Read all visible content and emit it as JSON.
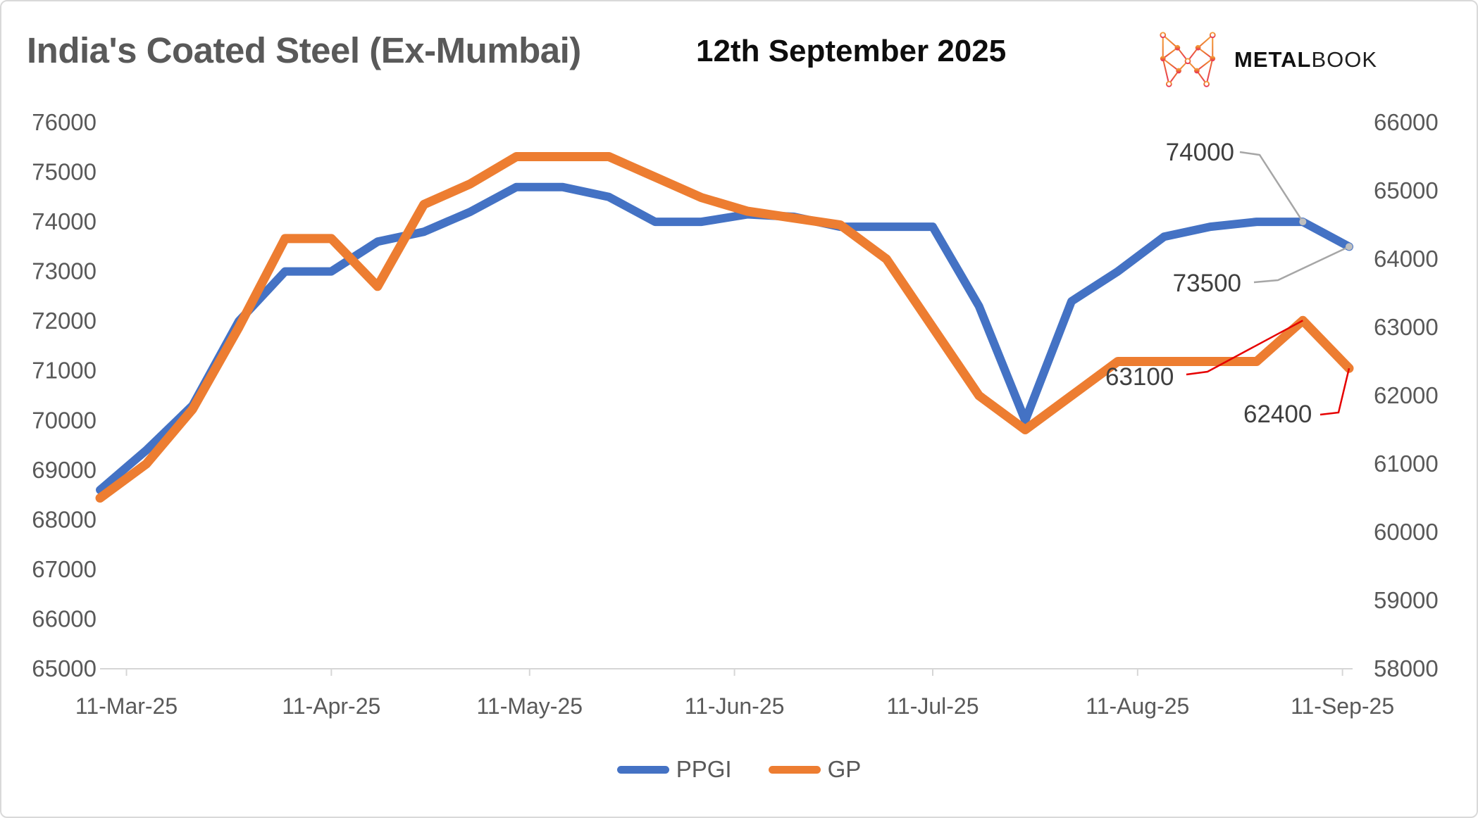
{
  "header": {
    "title": "India's Coated Steel (Ex-Mumbai)",
    "date": "12th September 2025",
    "logo": {
      "icon": "metalbook-network-m-icon",
      "brand_bold": "METAL",
      "brand_light": "BOOK"
    }
  },
  "chart_data": {
    "type": "line",
    "title": "India's Coated Steel (Ex-Mumbai)",
    "grid": false,
    "legend_position": "bottom",
    "x_tick_labels": [
      "11-Mar-25",
      "11-Apr-25",
      "11-May-25",
      "11-Jun-25",
      "11-Jul-25",
      "11-Aug-25",
      "11-Sep-25"
    ],
    "x": [
      "2025-03-07",
      "2025-03-14",
      "2025-03-21",
      "2025-03-28",
      "2025-04-04",
      "2025-04-11",
      "2025-04-18",
      "2025-04-25",
      "2025-05-02",
      "2025-05-09",
      "2025-05-16",
      "2025-05-23",
      "2025-05-30",
      "2025-06-06",
      "2025-06-13",
      "2025-06-20",
      "2025-06-27",
      "2025-07-04",
      "2025-07-11",
      "2025-07-18",
      "2025-07-25",
      "2025-08-01",
      "2025-08-08",
      "2025-08-15",
      "2025-08-22",
      "2025-08-29",
      "2025-09-05",
      "2025-09-12"
    ],
    "left_axis": {
      "min": 65000,
      "max": 76000,
      "step": 1000,
      "ticks": [
        "76000",
        "75000",
        "74000",
        "73000",
        "72000",
        "71000",
        "70000",
        "69000",
        "68000",
        "67000",
        "66000",
        "65000"
      ]
    },
    "right_axis": {
      "min": 58000,
      "max": 66000,
      "step": 1000,
      "ticks": [
        "66000",
        "65000",
        "64000",
        "63000",
        "62000",
        "61000",
        "60000",
        "59000",
        "58000"
      ]
    },
    "series": [
      {
        "name": "PPGI",
        "axis": "left",
        "color": "#4472C4",
        "values": [
          68600,
          69400,
          70300,
          72000,
          73000,
          73000,
          73600,
          73800,
          74200,
          74700,
          74700,
          74500,
          74000,
          74000,
          74150,
          74100,
          73900,
          73900,
          73900,
          72300,
          70000,
          72400,
          73000,
          73700,
          73900,
          74000,
          74000,
          73500
        ]
      },
      {
        "name": "GP",
        "axis": "right",
        "color": "#ED7D31",
        "values": [
          60500,
          61000,
          61800,
          63000,
          64300,
          64300,
          63600,
          64800,
          65100,
          65500,
          65500,
          65500,
          65200,
          64900,
          64700,
          64600,
          64500,
          64000,
          63000,
          62000,
          61500,
          62000,
          62500,
          62500,
          62500,
          62500,
          63100,
          62400
        ]
      }
    ],
    "annotations": [
      {
        "text": "74000",
        "series": "PPGI",
        "point_index": 26,
        "leader_color": "#A6A6A6"
      },
      {
        "text": "73500",
        "series": "PPGI",
        "point_index": 27,
        "leader_color": "#A6A6A6"
      },
      {
        "text": "63100",
        "series": "GP",
        "point_index": 26,
        "leader_color": "#E60000"
      },
      {
        "text": "62400",
        "series": "GP",
        "point_index": 27,
        "leader_color": "#E60000"
      }
    ],
    "legend": [
      {
        "label": "PPGI",
        "color": "#4472C4"
      },
      {
        "label": "GP",
        "color": "#ED7D31"
      }
    ]
  }
}
